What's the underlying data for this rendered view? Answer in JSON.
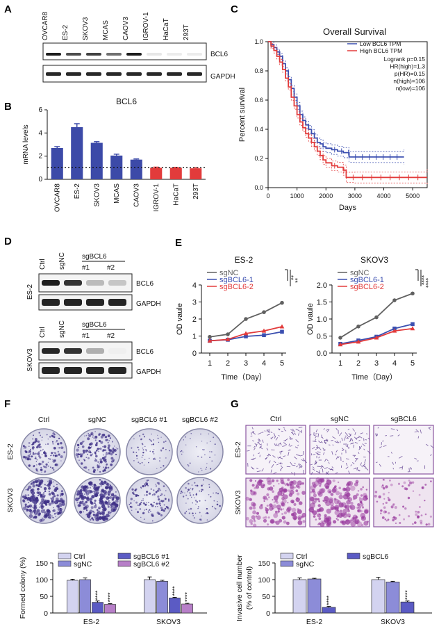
{
  "panels": {
    "A": "A",
    "B": "B",
    "C": "C",
    "D": "D",
    "E": "E",
    "F": "F",
    "G": "G"
  },
  "panelA": {
    "cell_lines": [
      "OVCAR8",
      "ES-2",
      "SKOV3",
      "MCAS",
      "CAOV3",
      "IGROV-1",
      "HaCaT",
      "293T"
    ],
    "blot_labels": [
      "BCL6",
      "GAPDH"
    ],
    "bcl6_intensity": [
      0.95,
      0.75,
      0.8,
      0.6,
      0.95,
      0.1,
      0.08,
      0.08
    ]
  },
  "panelB_chart": {
    "type": "bar",
    "title": "BCL6",
    "ylabel": "mRNA levels",
    "categories": [
      "OVCAR8",
      "ES-2",
      "SKOV3",
      "MCAS",
      "CAOV3",
      "IGROV-1",
      "HaCaT",
      "293T"
    ],
    "values": [
      2.7,
      4.5,
      3.15,
      2.05,
      1.7,
      1.0,
      1.0,
      0.95
    ],
    "errors": [
      0.12,
      0.3,
      0.1,
      0.12,
      0.06,
      0.05,
      0.03,
      0.05
    ],
    "colors": [
      "#3c4aa8",
      "#3c4aa8",
      "#3c4aa8",
      "#3c4aa8",
      "#3c4aa8",
      "#e23b3b",
      "#e23b3b",
      "#e23b3b"
    ],
    "ylim": [
      0,
      6
    ],
    "yticks": [
      "0",
      "2",
      "4",
      "6"
    ],
    "reference_line": 1.0
  },
  "panelC_chart": {
    "type": "line",
    "title": "Overall Survival",
    "xlabel": "Days",
    "ylabel": "Percent survival",
    "xticks": [
      "0",
      "1000",
      "2000",
      "3000",
      "4000",
      "5000"
    ],
    "yticks": [
      "0.0",
      "0.2",
      "0.4",
      "0.6",
      "0.8",
      "1.0"
    ],
    "xlim": [
      0,
      5500
    ],
    "ylim": [
      0,
      1.0
    ],
    "legend": [
      "Low BCL6 TPM",
      "High BCL6 TPM"
    ],
    "stats": [
      "Logrank p=0.15",
      "HR(high)=1.3",
      "p(HR)=0.15",
      "n(high)=106",
      "n(low)=106"
    ],
    "series": [
      {
        "name": "Low BCL6 TPM",
        "color": "#3b4fb0",
        "x": [
          0,
          100,
          200,
          300,
          400,
          500,
          600,
          700,
          800,
          900,
          1000,
          1100,
          1200,
          1300,
          1400,
          1500,
          1600,
          1700,
          1800,
          1900,
          2000,
          2200,
          2400,
          2600,
          2800,
          3000,
          4700
        ],
        "y": [
          1.0,
          0.98,
          0.96,
          0.93,
          0.9,
          0.85,
          0.8,
          0.74,
          0.68,
          0.62,
          0.56,
          0.5,
          0.46,
          0.43,
          0.4,
          0.37,
          0.34,
          0.31,
          0.3,
          0.28,
          0.27,
          0.26,
          0.25,
          0.24,
          0.21,
          0.21,
          0.21
        ]
      },
      {
        "name": "High BCL6 TPM",
        "color": "#e23b3b",
        "x": [
          0,
          100,
          200,
          300,
          400,
          500,
          600,
          700,
          800,
          900,
          1000,
          1100,
          1200,
          1300,
          1400,
          1500,
          1600,
          1700,
          1800,
          1900,
          2000,
          2200,
          2400,
          2600,
          2700,
          3000,
          5500
        ],
        "y": [
          1.0,
          0.97,
          0.94,
          0.9,
          0.86,
          0.81,
          0.75,
          0.69,
          0.62,
          0.56,
          0.5,
          0.45,
          0.41,
          0.37,
          0.34,
          0.31,
          0.28,
          0.25,
          0.22,
          0.19,
          0.17,
          0.15,
          0.14,
          0.12,
          0.07,
          0.07,
          0.07
        ]
      }
    ]
  },
  "panelD": {
    "lanes_top": [
      "Ctrl",
      "sgNC",
      "#1",
      "#2"
    ],
    "group_label": "sgBCL6",
    "cell_top": "ES-2",
    "cell_bottom": "SKOV3",
    "blot_labels": [
      "BCL6",
      "GAPDH"
    ]
  },
  "panelE_charts": [
    {
      "type": "line",
      "title": "ES-2",
      "xlabel": "Time（Day）",
      "ylabel": "OD vaule",
      "x": [
        1,
        2,
        3,
        4,
        5
      ],
      "ylim": [
        0,
        4
      ],
      "yticks": [
        "0",
        "1",
        "2",
        "3",
        "4"
      ],
      "xticks": [
        "1",
        "2",
        "3",
        "4",
        "5"
      ],
      "significance": [
        "**",
        "**"
      ],
      "series": [
        {
          "name": "sgNC",
          "color": "#606060",
          "values": [
            0.95,
            1.1,
            2.0,
            2.4,
            2.95
          ]
        },
        {
          "name": "sgBCL6-1",
          "color": "#3b4fb0",
          "values": [
            0.72,
            0.78,
            0.98,
            1.05,
            1.25
          ]
        },
        {
          "name": "sgBCL6-2",
          "color": "#e23b3b",
          "values": [
            0.72,
            0.8,
            1.15,
            1.3,
            1.55
          ]
        }
      ]
    },
    {
      "type": "line",
      "title": "SKOV3",
      "xlabel": "Time（Day）",
      "ylabel": "OD vaule",
      "x": [
        1,
        2,
        3,
        4,
        5
      ],
      "ylim": [
        0,
        2.0
      ],
      "yticks": [
        "0.0",
        "0.5",
        "1.0",
        "1.5",
        "2.0"
      ],
      "xticks": [
        "1",
        "2",
        "3",
        "4",
        "5"
      ],
      "significance": [
        "****",
        "****"
      ],
      "series": [
        {
          "name": "sgNC",
          "color": "#606060",
          "values": [
            0.45,
            0.78,
            1.05,
            1.55,
            1.75
          ]
        },
        {
          "name": "sgBCL6-1",
          "color": "#3b4fb0",
          "values": [
            0.27,
            0.37,
            0.48,
            0.72,
            0.85
          ]
        },
        {
          "name": "sgBCL6-2",
          "color": "#e23b3b",
          "values": [
            0.25,
            0.33,
            0.45,
            0.65,
            0.72
          ]
        }
      ]
    }
  ],
  "panelF": {
    "columns": [
      "Ctrl",
      "sgNC",
      "sgBCL6 #1",
      "sgBCL6 #2"
    ],
    "rows": [
      "ES-2",
      "SKOV3"
    ],
    "density": [
      [
        0.55,
        0.6,
        0.25,
        0.15
      ],
      [
        0.85,
        0.9,
        0.45,
        0.3
      ]
    ]
  },
  "panelF_chart": {
    "type": "bar",
    "ylabel": "Formed colony (%)",
    "categories": [
      "ES-2",
      "SKOV3"
    ],
    "ylim": [
      0,
      150
    ],
    "yticks": [
      "0",
      "50",
      "100",
      "150"
    ],
    "series": [
      {
        "name": "Ctrl",
        "color": "#d3d3f0",
        "values": [
          98,
          100
        ],
        "errors": [
          3,
          8
        ]
      },
      {
        "name": "sgNC",
        "color": "#8c8cd8",
        "values": [
          100,
          95
        ],
        "errors": [
          5,
          3
        ]
      },
      {
        "name": "sgBCL6 #1",
        "color": "#5b5bc4",
        "values": [
          32,
          45
        ],
        "errors": [
          4,
          2
        ]
      },
      {
        "name": "sgBCL6 #2",
        "color": "#b77fc8",
        "values": [
          26,
          27
        ],
        "errors": [
          2,
          2
        ]
      }
    ],
    "significance": "****"
  },
  "panelG": {
    "columns": [
      "Ctrl",
      "sgNC",
      "sgBCL6"
    ],
    "rows": [
      "ES-2",
      "SKOV3"
    ],
    "density": [
      [
        0.5,
        0.6,
        0.15
      ],
      [
        0.75,
        0.85,
        0.35
      ]
    ]
  },
  "panelG_chart": {
    "type": "bar",
    "ylabel": "Invasive cell number",
    "ylabel2": "(% of control)",
    "categories": [
      "ES-2",
      "SKOV3"
    ],
    "ylim": [
      0,
      150
    ],
    "yticks": [
      "0",
      "50",
      "100",
      "150"
    ],
    "series": [
      {
        "name": "Ctrl",
        "color": "#d3d3f0",
        "values": [
          100,
          100
        ],
        "errors": [
          5,
          7
        ]
      },
      {
        "name": "sgNC",
        "color": "#8c8cd8",
        "values": [
          102,
          93
        ],
        "errors": [
          2,
          2
        ]
      },
      {
        "name": "sgBCL6",
        "color": "#5b5bc4",
        "values": [
          17,
          33
        ],
        "errors": [
          3,
          3
        ]
      }
    ],
    "significance": "****"
  }
}
